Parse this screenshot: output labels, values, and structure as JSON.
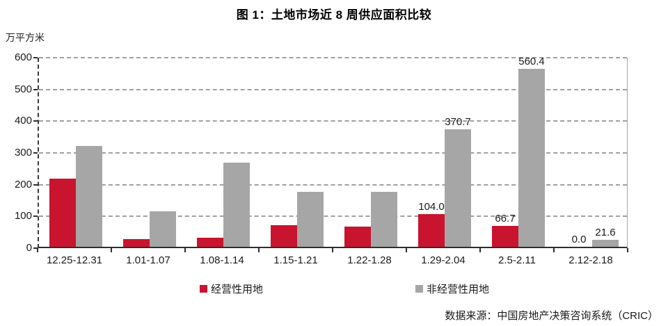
{
  "title": "图 1：土地市场近 8 周供应面积比较",
  "y_axis_unit": "万平方米",
  "source": "数据来源：中国房地产决策咨询系统（CRIC）",
  "colors": {
    "operational_land": "#c8142e",
    "non_operational_land": "#a6a6a6",
    "gridline": "#a0a0a0",
    "axis": "#2e2e2e"
  },
  "legend": [
    {
      "label": "经营性用地",
      "color": "#c8142e"
    },
    {
      "label": "非经营性用地",
      "color": "#a6a6a6"
    }
  ],
  "chart_data": {
    "type": "bar",
    "title": "图 1：土地市场近 8 周供应面积比较",
    "ylabel": "万平方米",
    "xlabel": "",
    "ylim": [
      0,
      600
    ],
    "yticks": [
      0,
      100,
      200,
      300,
      400,
      500,
      600
    ],
    "grid": "horizontal-dashed",
    "legend_position": "bottom",
    "categories": [
      "12.25-12.31",
      "1.01-1.07",
      "1.08-1.14",
      "1.15-1.21",
      "1.22-1.28",
      "1.29-2.04",
      "2.5-2.11",
      "2.12-2.18"
    ],
    "series": [
      {
        "name": "经营性用地",
        "color": "#c8142e",
        "values": [
          215,
          25,
          29,
          67,
          64,
          104.0,
          66.7,
          0.0
        ],
        "data_labels": [
          "",
          "",
          "",
          "",
          "",
          "104.0",
          "66.7",
          "0.0"
        ]
      },
      {
        "name": "非经营性用地",
        "color": "#a6a6a6",
        "values": [
          318,
          112,
          266,
          173,
          172,
          370.7,
          560.4,
          21.6
        ],
        "data_labels": [
          "",
          "",
          "",
          "",
          "",
          "370.7",
          "560.4",
          "21.6"
        ]
      }
    ]
  }
}
